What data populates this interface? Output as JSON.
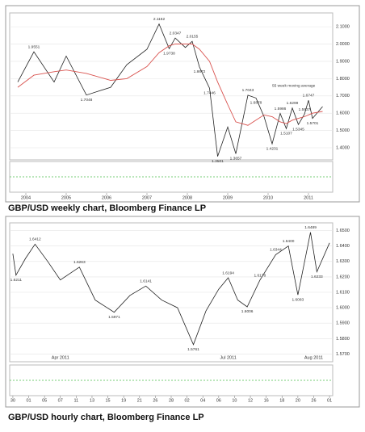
{
  "chart_data": [
    {
      "type": "line",
      "title": "GBP/USD weekly chart, Bloomberg Finance LP",
      "x": [
        2003.8,
        2004.2,
        2004.7,
        2005.0,
        2005.5,
        2006.1,
        2006.5,
        2007.0,
        2007.3,
        2007.55,
        2007.7,
        2007.95,
        2008.12,
        2008.3,
        2008.55,
        2008.75,
        2009.0,
        2009.2,
        2009.5,
        2009.7,
        2009.9,
        2010.1,
        2010.3,
        2010.45,
        2010.6,
        2010.75,
        2010.9,
        2011.0,
        2011.1,
        2011.35
      ],
      "series": [
        {
          "color": "#222222",
          "values": [
            1.78,
            1.9551,
            1.78,
            1.93,
            1.7048,
            1.75,
            1.88,
            1.97,
            2.1162,
            1.9738,
            2.0347,
            1.98,
            2.0155,
            1.8672,
            1.7446,
            1.3501,
            1.52,
            1.3657,
            1.7043,
            1.6878,
            1.58,
            1.4231,
            1.5986,
            1.5107,
            1.6299,
            1.5345,
            1.5937,
            1.6747,
            1.5701,
            1.6381
          ],
          "value_labels": [
            null,
            "1.9551",
            null,
            null,
            "1.7048",
            null,
            null,
            null,
            "2.1162",
            "1.9738",
            "2.0347",
            null,
            "2.0155",
            "1.8672",
            "1.7446",
            "1.3501",
            null,
            "1.3657",
            "1.7043",
            "1.6878",
            null,
            "1.4231",
            "1.5986",
            "1.5107",
            "1.6299",
            "1.5345",
            "1.5937",
            "1.6747",
            "1.5701",
            null
          ]
        },
        {
          "name": "55 week moving average",
          "color": "#d9534f",
          "values": [
            1.75,
            1.82,
            1.84,
            1.85,
            1.83,
            1.79,
            1.8,
            1.87,
            1.95,
            1.99,
            2.0,
            2.0,
            2.0,
            1.97,
            1.9,
            1.78,
            1.65,
            1.55,
            1.53,
            1.56,
            1.59,
            1.58,
            1.55,
            1.54,
            1.56,
            1.57,
            1.58,
            1.59,
            1.6,
            1.61
          ]
        }
      ],
      "xlim": [
        2003.6,
        2011.6
      ],
      "xticks": [
        2004,
        2005,
        2006,
        2007,
        2008,
        2009,
        2010,
        2011
      ],
      "ylim": [
        1.33,
        2.18
      ],
      "yticks": [
        {
          "value": 1.4,
          "label": "1.4000"
        },
        {
          "value": 1.5,
          "label": "1.5000"
        },
        {
          "value": 1.6,
          "label": "1.6000"
        },
        {
          "value": 1.7,
          "label": "1.7000"
        },
        {
          "value": 1.8,
          "label": "1.8000"
        },
        {
          "value": 1.9,
          "label": "1.9000"
        },
        {
          "value": 2.0,
          "label": "2.0000"
        },
        {
          "value": 2.1,
          "label": "2.1000"
        }
      ],
      "grid": true
    },
    {
      "type": "line",
      "title": "GBP/USD hourly chart, Bloomberg Finance LP",
      "x": [
        0,
        1,
        4,
        7,
        11,
        15,
        21,
        26,
        32,
        37,
        42,
        47,
        52,
        57,
        61,
        65,
        68,
        71,
        74,
        78,
        83,
        87,
        90,
        94,
        96,
        100
      ],
      "series": [
        {
          "color": "#222222",
          "values": [
            1.635,
            1.6211,
            1.632,
            1.6412,
            1.63,
            1.618,
            1.6263,
            1.605,
            1.5971,
            1.608,
            1.6141,
            1.605,
            1.6,
            1.5761,
            1.598,
            1.612,
            1.6194,
            1.605,
            1.6006,
            1.6178,
            1.6344,
            1.64,
            1.6083,
            1.6489,
            1.6233,
            1.642
          ],
          "value_labels": [
            null,
            "1.6211",
            null,
            "1.6412",
            null,
            null,
            "1.6263",
            null,
            "1.5971",
            null,
            "1.6141",
            null,
            null,
            "1.5761",
            null,
            null,
            "1.6194",
            null,
            "1.6006",
            "1.6178",
            "1.6344",
            "1.6400",
            "1.6083",
            "1.6489",
            "1.6233",
            null
          ]
        }
      ],
      "xlim": [
        -1,
        101
      ],
      "xticks": [
        {
          "value": 0,
          "label": "30"
        },
        {
          "value": 5,
          "label": "01"
        },
        {
          "value": 10,
          "label": "05"
        },
        {
          "value": 15,
          "label": "07"
        },
        {
          "value": 20,
          "label": "11"
        },
        {
          "value": 25,
          "label": "13"
        },
        {
          "value": 30,
          "label": "15"
        },
        {
          "value": 35,
          "label": "19"
        },
        {
          "value": 40,
          "label": "21"
        },
        {
          "value": 45,
          "label": "26"
        },
        {
          "value": 50,
          "label": "28"
        },
        {
          "value": 55,
          "label": "02"
        },
        {
          "value": 60,
          "label": "04"
        },
        {
          "value": 65,
          "label": "06"
        },
        {
          "value": 70,
          "label": "10"
        },
        {
          "value": 75,
          "label": "12"
        },
        {
          "value": 80,
          "label": "16"
        },
        {
          "value": 85,
          "label": "18"
        },
        {
          "value": 90,
          "label": "20"
        },
        {
          "value": 95,
          "label": "26"
        },
        {
          "value": 100,
          "label": "01"
        }
      ],
      "period_labels": [
        {
          "value": 15,
          "label": "Apr 2011"
        },
        {
          "value": 68,
          "label": "Jul 2011"
        },
        {
          "value": 95,
          "label": "Aug 2011"
        }
      ],
      "ylim": [
        1.565,
        1.655
      ],
      "yticks": [
        {
          "value": 1.57,
          "label": "1.5700"
        },
        {
          "value": 1.58,
          "label": "1.5800"
        },
        {
          "value": 1.59,
          "label": "1.5900"
        },
        {
          "value": 1.6,
          "label": "1.6000"
        },
        {
          "value": 1.61,
          "label": "1.6100"
        },
        {
          "value": 1.62,
          "label": "1.6200"
        },
        {
          "value": 1.63,
          "label": "1.6300"
        },
        {
          "value": 1.64,
          "label": "1.6400"
        },
        {
          "value": 1.65,
          "label": "1.6500"
        }
      ],
      "grid": true
    }
  ]
}
